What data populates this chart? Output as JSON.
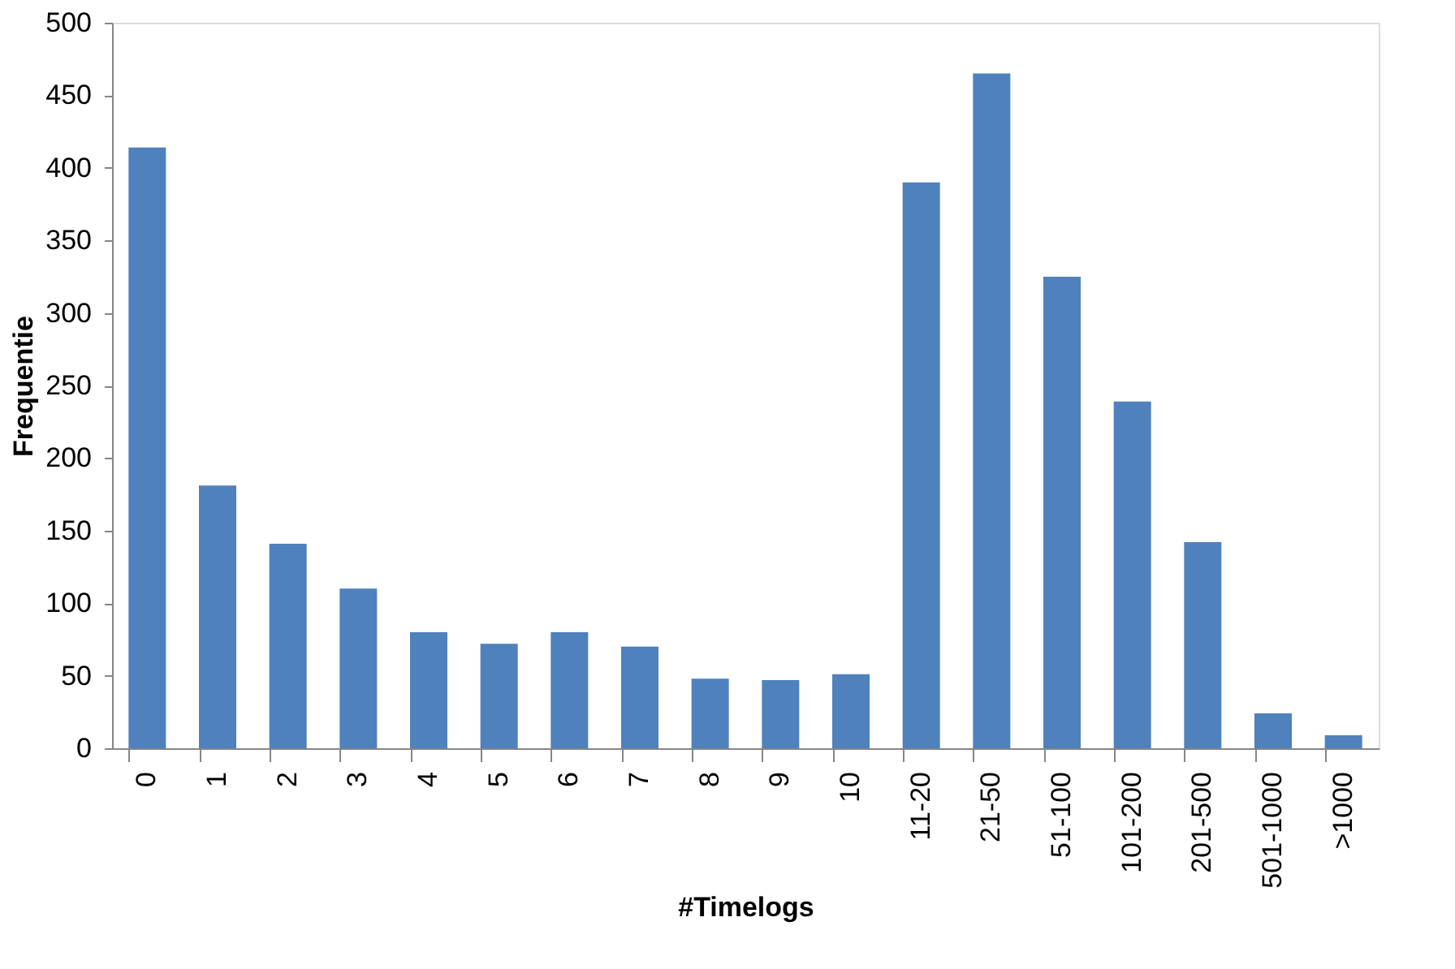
{
  "chart_data": {
    "type": "bar",
    "xlabel": "#Timelogs",
    "ylabel": "Frequentie",
    "categories": [
      "0",
      "1",
      "2",
      "3",
      "4",
      "5",
      "6",
      "7",
      "8",
      "9",
      "10",
      "11-20",
      "21-50",
      "51-100",
      "101-200",
      "201-500",
      "501-1000",
      ">1000"
    ],
    "values": [
      414,
      181,
      141,
      110,
      80,
      72,
      80,
      70,
      48,
      47,
      51,
      390,
      465,
      325,
      239,
      142,
      24,
      9
    ],
    "color": "#4f81bd",
    "ylim": [
      0,
      500
    ],
    "yticks": [
      0,
      50,
      100,
      150,
      200,
      250,
      300,
      350,
      400,
      450,
      500
    ],
    "grid": false,
    "legend": false
  }
}
